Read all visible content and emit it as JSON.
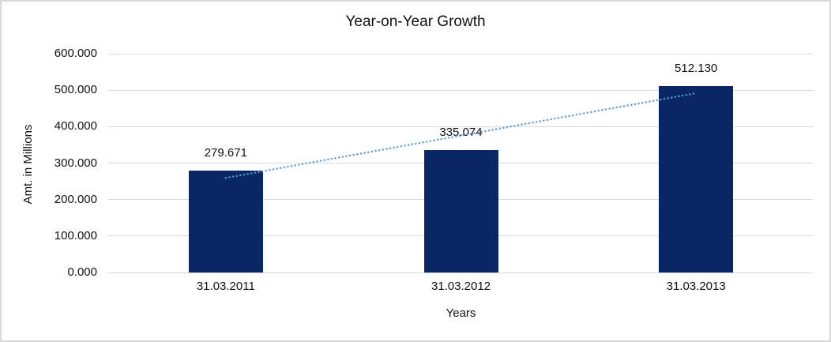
{
  "chart_data": {
    "type": "bar",
    "title": "Year-on-Year Growth",
    "xlabel": "Years",
    "ylabel": "Amt. in Millions",
    "categories": [
      "31.03.2011",
      "31.03.2012",
      "31.03.2013"
    ],
    "values": [
      279.671,
      335.074,
      512.13
    ],
    "data_labels": [
      "279.671",
      "335.074",
      "512.130"
    ],
    "ylim": [
      0,
      600
    ],
    "ytick_step": 100,
    "ytick_labels": [
      "0.000",
      "100.000",
      "200.000",
      "300.000",
      "400.000",
      "500.000",
      "600.000"
    ],
    "grid": true,
    "legend": "none",
    "bar_color": "#0a2765",
    "trendline": {
      "type": "linear",
      "style": "dotted",
      "color": "#5b9bd5"
    },
    "colors": {
      "gridline": "#d9d9d9",
      "axis_line": "#d9d9d9",
      "text": "#111111",
      "page_border": "#d8d8d8",
      "background": "#ffffff"
    }
  }
}
